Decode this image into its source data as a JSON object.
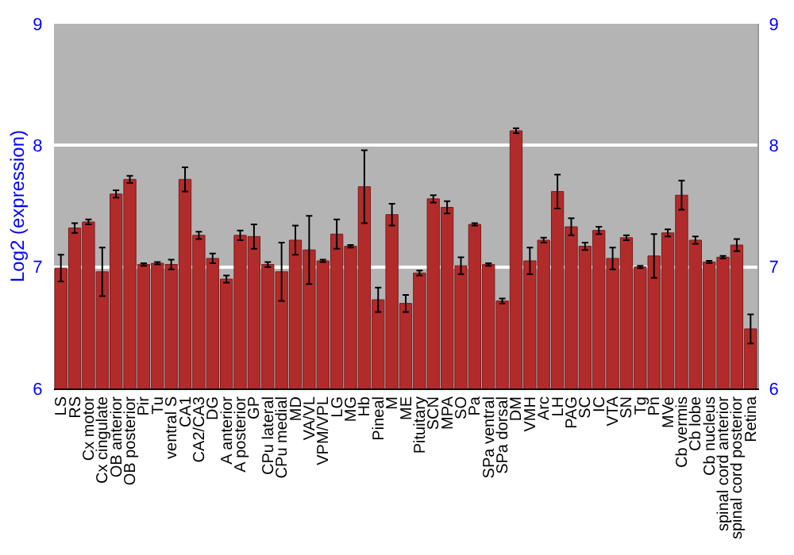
{
  "chart_data": {
    "type": "bar",
    "ylabel": "Log2 (expression)",
    "categories": [
      "LS",
      "RS",
      "Cx motor",
      "Cx cingulate",
      "OB anterior",
      "OB posterior",
      "Pir",
      "Tu",
      "ventral S",
      "CA1",
      "CA2/CA3",
      "DG",
      "A anterior",
      "A posterior",
      "GP",
      "CPu lateral",
      "CPu medial",
      "MD",
      "VA/VL",
      "VPM/VPL",
      "LG",
      "MG",
      "Hb",
      "Pineal",
      "M",
      "ME",
      "Pituitary",
      "SCN",
      "MPA",
      "SO",
      "Pa",
      "SPa ventral",
      "SPa dorsal",
      "DM",
      "VMH",
      "Arc",
      "LH",
      "PAG",
      "SC",
      "IC",
      "VTA",
      "SN",
      "Tg",
      "Pn",
      "MVe",
      "Cb vermis",
      "Cb lobe",
      "Cb nucleus",
      "spinal cord anterior",
      "spinal cord posterior",
      "Retina"
    ],
    "series": [
      {
        "color": "#b22b2b",
        "values": [
          6.99,
          7.32,
          7.37,
          6.96,
          7.6,
          7.72,
          7.02,
          7.03,
          7.02,
          7.72,
          7.26,
          7.07,
          6.9,
          7.26,
          7.25,
          7.02,
          6.96,
          7.22,
          7.14,
          7.05,
          7.27,
          7.17,
          7.66,
          6.73,
          7.43,
          6.7,
          6.95,
          7.56,
          7.49,
          7.01,
          7.35,
          7.02,
          6.72,
          8.12,
          7.05,
          7.22,
          7.62,
          7.33,
          7.17,
          7.3,
          7.07,
          7.24,
          7.0,
          7.09,
          7.28,
          7.59,
          7.22,
          7.04,
          7.08,
          7.18,
          6.49
        ],
        "errors": [
          0.11,
          0.04,
          0.02,
          0.2,
          0.03,
          0.03,
          0.01,
          0.01,
          0.04,
          0.1,
          0.03,
          0.04,
          0.03,
          0.04,
          0.1,
          0.02,
          0.24,
          0.12,
          0.28,
          0.01,
          0.12,
          0.01,
          0.3,
          0.1,
          0.09,
          0.07,
          0.02,
          0.03,
          0.05,
          0.07,
          0.01,
          0.01,
          0.02,
          0.02,
          0.11,
          0.02,
          0.14,
          0.07,
          0.03,
          0.03,
          0.09,
          0.02,
          0.01,
          0.18,
          0.03,
          0.12,
          0.03,
          0.01,
          0.01,
          0.05,
          0.12
        ]
      }
    ],
    "ylim": [
      6,
      9
    ],
    "yticks": [
      6,
      7,
      8,
      9
    ],
    "y2lim": [
      6,
      9
    ],
    "y2ticks": [
      6,
      7,
      8,
      9
    ],
    "grid": "y"
  }
}
